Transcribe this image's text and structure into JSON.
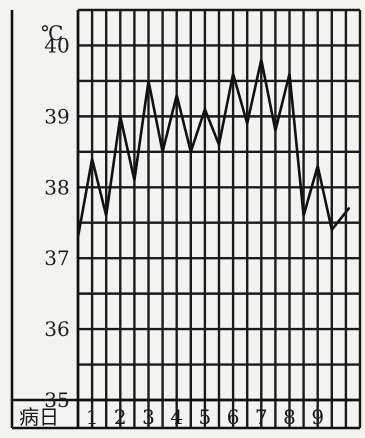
{
  "chart_data": {
    "type": "line",
    "unit_label": "℃",
    "xlabel": "病日",
    "x_tick_labels": [
      "1",
      "2",
      "3",
      "4",
      "5",
      "6",
      "7",
      "8",
      "9"
    ],
    "y_tick_labels": [
      "35",
      "36",
      "37",
      "38",
      "39",
      "40"
    ],
    "ylim": [
      35,
      40.5
    ],
    "xlim": [
      0,
      10
    ],
    "grid": true,
    "series": [
      {
        "points": [
          [
            0.0,
            37.3
          ],
          [
            0.5,
            38.4
          ],
          [
            1.0,
            37.6
          ],
          [
            1.5,
            39.0
          ],
          [
            2.0,
            38.1
          ],
          [
            2.5,
            39.5
          ],
          [
            3.0,
            38.5
          ],
          [
            3.5,
            39.3
          ],
          [
            4.0,
            38.5
          ],
          [
            4.5,
            39.1
          ],
          [
            5.0,
            38.6
          ],
          [
            5.5,
            39.6
          ],
          [
            6.0,
            38.9
          ],
          [
            6.5,
            39.8
          ],
          [
            7.0,
            38.8
          ],
          [
            7.5,
            39.6
          ],
          [
            8.0,
            37.6
          ],
          [
            8.5,
            38.3
          ],
          [
            9.0,
            37.4
          ],
          [
            9.6,
            37.7
          ]
        ]
      }
    ]
  }
}
